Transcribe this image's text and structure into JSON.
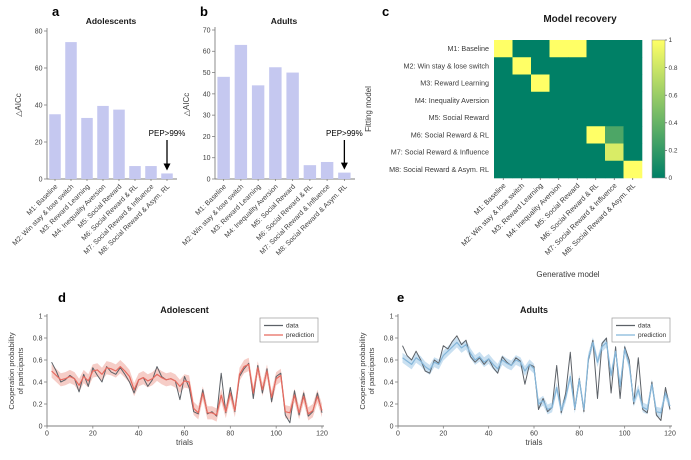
{
  "figure": {
    "panel_letters": {
      "a": "a",
      "b": "b",
      "c": "c",
      "d": "d",
      "e": "e"
    }
  },
  "colors": {
    "bar_fill": "#c5c8f0",
    "axis": "#7f7f7f",
    "text": "#404040",
    "annotation": "#000000",
    "data_line": "#5c6167",
    "prediction_line_adolescent": "#e7695e",
    "band_adolescent": "#f6cdc7",
    "prediction_line_adults": "#85b6d9",
    "band_adults": "#c9e0f1",
    "heatmap_min": "#008066",
    "heatmap_max": "#ffff66"
  },
  "chart_data": [
    {
      "panel": "a",
      "type": "bar",
      "title": "Adolescents",
      "ylabel": "△AICc",
      "ylim": [
        0,
        80
      ],
      "yticks": [
        0,
        20,
        40,
        60,
        80
      ],
      "categories": [
        "M1: Baseline",
        "M2: Win stay & lose switch",
        "M3: Reward Learning",
        "M4: Inequality Aversion",
        "M5: Social Reward",
        "M6: Social Reward & RL",
        "M7: Social Reward & Influence",
        "M8: Social Reward & Asym. RL"
      ],
      "values": [
        35,
        74,
        33,
        39.5,
        37.5,
        7,
        7,
        3
      ],
      "annotation": {
        "text": "PEP>99%",
        "target_category": "M8: Social Reward & Asym. RL"
      }
    },
    {
      "panel": "b",
      "type": "bar",
      "title": "Adults",
      "ylabel": "△AICc",
      "ylim": [
        0,
        70
      ],
      "yticks": [
        0,
        10,
        20,
        30,
        40,
        50,
        60,
        70
      ],
      "categories": [
        "M1: Baseline",
        "M2: Win stay & lose switch",
        "M3: Reward Learning",
        "M4: Inequality Aversion",
        "M5: Social Reward",
        "M6: Social Reward & RL",
        "M7: Social Reward & Influence",
        "M8: Social Reward & Asym. RL"
      ],
      "values": [
        48,
        63,
        44,
        52.5,
        50,
        6.5,
        8,
        3
      ],
      "annotation": {
        "text": "PEP>99%",
        "target_category": "M8: Social Reward & Asym. RL"
      }
    },
    {
      "panel": "c",
      "type": "heatmap",
      "title": "Model recovery",
      "xlabel": "Generative model",
      "ylabel": "Fitting model",
      "rows": [
        "M1: Baseline",
        "M2: Win stay & lose switch",
        "M3: Reward Learning",
        "M4: Inequality Aversion",
        "M5: Social Reward",
        "M6: Social Reward & RL",
        "M7: Social Reward & Influence",
        "M8: Social Reward & Asym. RL"
      ],
      "cols": [
        "M1: Baseline",
        "M2: Win stay & lose switch",
        "M3: Reward Learning",
        "M4: Inequality Aversion",
        "M5: Social Reward",
        "M6: Social Reward & RL",
        "M7: Social Reward & Influence",
        "M8: Social Reward & Asym. RL"
      ],
      "matrix": [
        [
          1,
          0,
          0,
          1,
          1,
          0,
          0,
          0
        ],
        [
          0,
          1,
          0,
          0,
          0,
          0,
          0,
          0
        ],
        [
          0,
          0,
          1,
          0,
          0,
          0,
          0,
          0
        ],
        [
          0,
          0,
          0,
          0,
          0,
          0,
          0,
          0
        ],
        [
          0,
          0,
          0,
          0,
          0,
          0,
          0,
          0
        ],
        [
          0,
          0,
          0,
          0,
          0,
          1,
          0.3,
          0
        ],
        [
          0,
          0,
          0,
          0,
          0,
          0,
          0.85,
          0
        ],
        [
          0,
          0,
          0,
          0,
          0,
          0,
          0,
          1
        ]
      ],
      "scale": {
        "min": 0,
        "max": 1,
        "ticks": [
          0,
          0.2,
          0.4,
          0.6,
          0.8,
          1
        ],
        "colormap": "summer"
      }
    },
    {
      "panel": "d",
      "type": "line",
      "title": "Adolescent",
      "xlabel": "trials",
      "ylabel_lines": [
        "Cooperation probability",
        "of participants"
      ],
      "xlim": [
        0,
        120
      ],
      "ylim": [
        0,
        1
      ],
      "xticks": [
        0,
        20,
        40,
        60,
        80,
        100,
        120
      ],
      "yticks": [
        0,
        0.2,
        0.4,
        0.6,
        0.8,
        1
      ],
      "x_start": 2,
      "x_step": 2,
      "legend": [
        "data",
        "prediction"
      ],
      "series": [
        {
          "name": "data",
          "color": "#5c6167",
          "values": [
            0.58,
            0.5,
            0.4,
            0.42,
            0.46,
            0.43,
            0.31,
            0.47,
            0.36,
            0.53,
            0.46,
            0.4,
            0.54,
            0.49,
            0.47,
            0.53,
            0.47,
            0.4,
            0.3,
            0.42,
            0.44,
            0.36,
            0.42,
            0.54,
            0.45,
            0.42,
            0.43,
            0.41,
            0.24,
            0.45,
            0.35,
            0.13,
            0.11,
            0.33,
            0.11,
            0.13,
            0.09,
            0.48,
            0.12,
            0.35,
            0.13,
            0.45,
            0.52,
            0.57,
            0.25,
            0.55,
            0.3,
            0.52,
            0.22,
            0.45,
            0.48,
            0.1,
            0.03,
            0.32,
            0.1,
            0.3,
            0.09,
            0.13,
            0.3,
            0.12
          ]
        },
        {
          "name": "prediction",
          "color": "#e7695e",
          "band_color": "#f6cdc7",
          "band_halfwidth": 0.06,
          "values": [
            0.5,
            0.46,
            0.42,
            0.43,
            0.45,
            0.43,
            0.37,
            0.45,
            0.41,
            0.5,
            0.51,
            0.47,
            0.53,
            0.52,
            0.5,
            0.54,
            0.5,
            0.45,
            0.33,
            0.42,
            0.44,
            0.41,
            0.43,
            0.47,
            0.44,
            0.42,
            0.43,
            0.41,
            0.36,
            0.41,
            0.4,
            0.16,
            0.12,
            0.3,
            0.12,
            0.12,
            0.1,
            0.28,
            0.13,
            0.3,
            0.14,
            0.47,
            0.54,
            0.56,
            0.3,
            0.53,
            0.33,
            0.5,
            0.26,
            0.43,
            0.46,
            0.13,
            0.12,
            0.28,
            0.12,
            0.27,
            0.11,
            0.14,
            0.27,
            0.14
          ]
        }
      ]
    },
    {
      "panel": "e",
      "type": "line",
      "title": "Adults",
      "xlabel": "trials",
      "ylabel_lines": [
        "Cooperation probability",
        "of participants"
      ],
      "xlim": [
        0,
        120
      ],
      "ylim": [
        0,
        1
      ],
      "xticks": [
        0,
        20,
        40,
        60,
        80,
        100,
        120
      ],
      "yticks": [
        0,
        0.2,
        0.4,
        0.6,
        0.8,
        1
      ],
      "x_start": 2,
      "x_step": 2,
      "legend": [
        "data",
        "prediction"
      ],
      "series": [
        {
          "name": "data",
          "color": "#5c6167",
          "values": [
            0.73,
            0.64,
            0.6,
            0.68,
            0.6,
            0.5,
            0.48,
            0.6,
            0.57,
            0.73,
            0.7,
            0.77,
            0.82,
            0.74,
            0.78,
            0.63,
            0.58,
            0.62,
            0.56,
            0.61,
            0.53,
            0.48,
            0.63,
            0.58,
            0.55,
            0.62,
            0.59,
            0.38,
            0.56,
            0.54,
            0.15,
            0.25,
            0.13,
            0.17,
            0.55,
            0.12,
            0.3,
            0.67,
            0.15,
            0.43,
            0.13,
            0.6,
            0.78,
            0.25,
            0.75,
            0.8,
            0.3,
            0.72,
            0.25,
            0.72,
            0.6,
            0.2,
            0.62,
            0.15,
            0.12,
            0.4,
            0.1,
            0.05,
            0.35,
            0.15
          ]
        },
        {
          "name": "prediction",
          "color": "#85b6d9",
          "band_color": "#c9e0f1",
          "band_halfwidth": 0.045,
          "values": [
            0.62,
            0.59,
            0.56,
            0.62,
            0.59,
            0.54,
            0.51,
            0.58,
            0.56,
            0.64,
            0.68,
            0.72,
            0.76,
            0.71,
            0.74,
            0.66,
            0.6,
            0.63,
            0.58,
            0.61,
            0.56,
            0.52,
            0.6,
            0.57,
            0.55,
            0.6,
            0.58,
            0.5,
            0.56,
            0.52,
            0.2,
            0.23,
            0.15,
            0.17,
            0.35,
            0.14,
            0.26,
            0.45,
            0.16,
            0.42,
            0.15,
            0.62,
            0.76,
            0.58,
            0.72,
            0.76,
            0.46,
            0.68,
            0.36,
            0.7,
            0.56,
            0.22,
            0.33,
            0.17,
            0.15,
            0.38,
            0.13,
            0.12,
            0.3,
            0.18
          ]
        }
      ]
    }
  ]
}
